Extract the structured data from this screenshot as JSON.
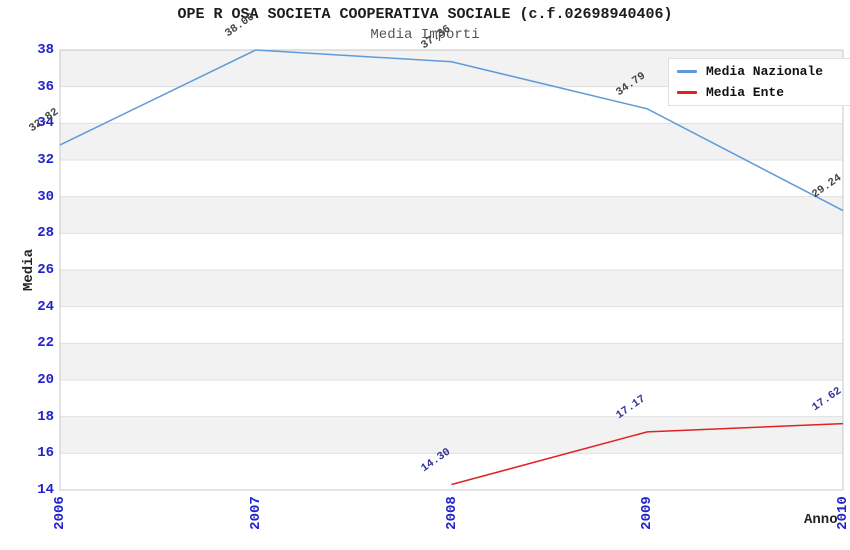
{
  "chart_data": {
    "type": "line",
    "title": "OPE R OSA SOCIETA COOPERATIVA SOCIALE (c.f.02698940406)",
    "subtitle": "Media Importi",
    "xlabel": "Anno",
    "ylabel": "Media",
    "categories": [
      "2006",
      "2007",
      "2008",
      "2009",
      "2010"
    ],
    "yticks": [
      14,
      16,
      18,
      20,
      22,
      24,
      26,
      28,
      30,
      32,
      34,
      36,
      38
    ],
    "ylim": [
      14,
      38
    ],
    "grid": "horizontal-bands-alternating",
    "legend_position": "top-right",
    "series": [
      {
        "name": "Media Nazionale",
        "color": "#5f9bd8",
        "label_color": "#444444",
        "values": [
          32.82,
          38.0,
          37.36,
          34.79,
          29.24
        ]
      },
      {
        "name": "Media Ente",
        "color": "#e02222",
        "label_color": "#333399",
        "values": [
          null,
          null,
          14.3,
          17.17,
          17.62
        ]
      }
    ]
  },
  "style": {
    "band_gray": "#f2f2f2",
    "band_white": "#ffffff",
    "gridline_color": "#e0e0e0",
    "border_color": "#c8c8c8",
    "tick_label_color": "#2222cc"
  }
}
